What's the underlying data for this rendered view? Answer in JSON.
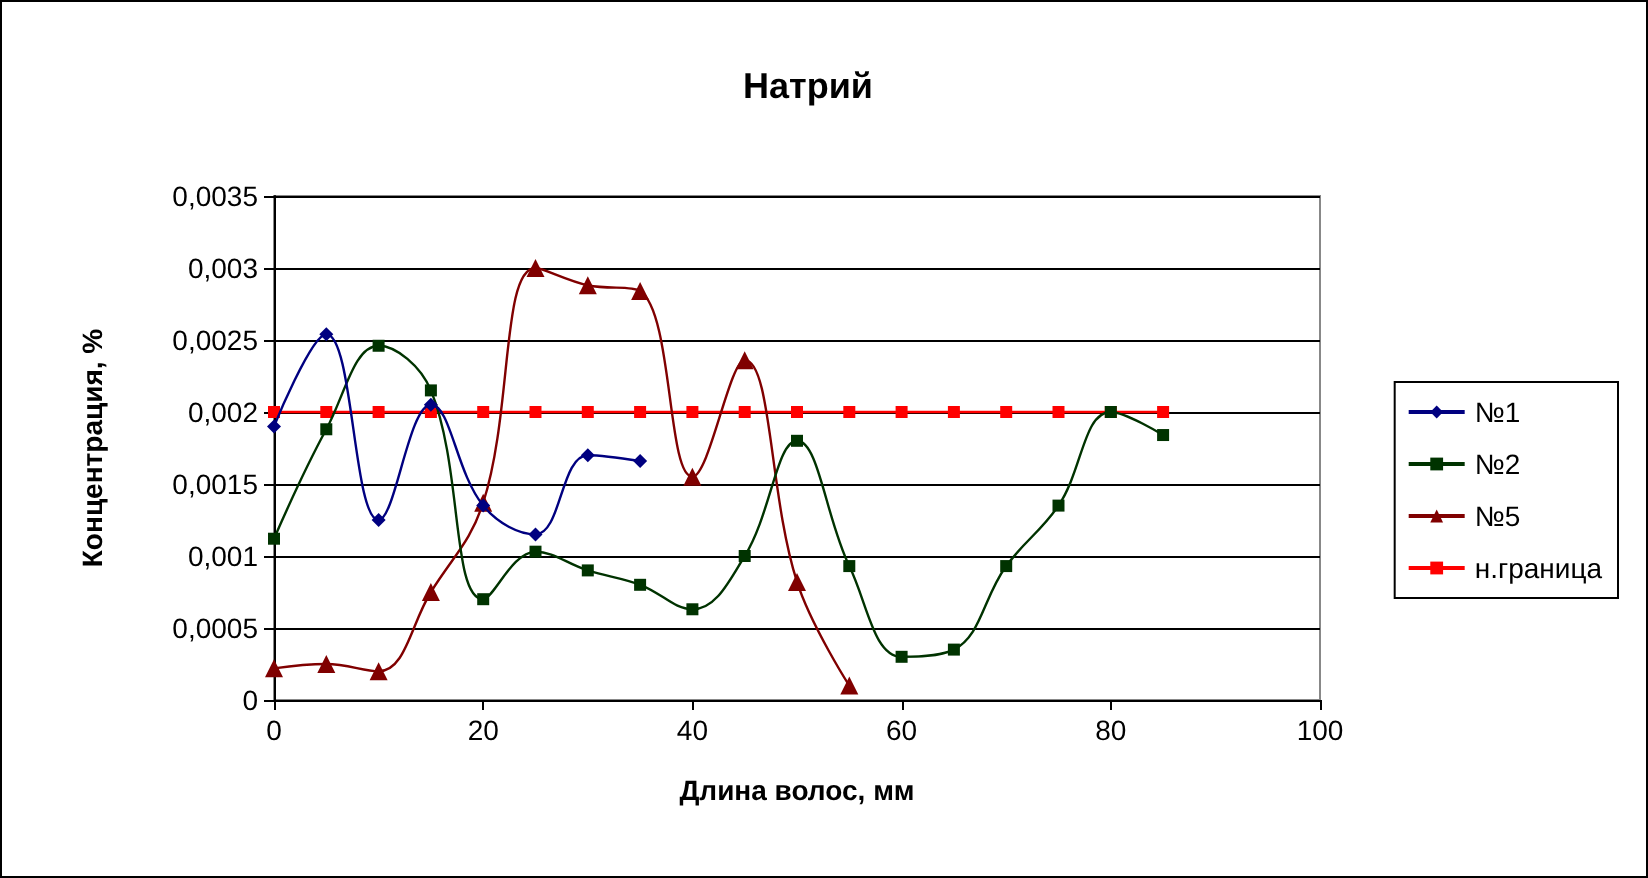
{
  "chart_data": {
    "type": "line",
    "title": "Натрий",
    "xlabel": "Длина волос, мм",
    "ylabel": "Концентрация, %",
    "xlim": [
      0,
      100
    ],
    "xticks": [
      0,
      20,
      40,
      60,
      80,
      100
    ],
    "ylim": [
      0,
      0.0035
    ],
    "yticks": [
      {
        "value": 0,
        "label": "0"
      },
      {
        "value": 0.0005,
        "label": "0,0005"
      },
      {
        "value": 0.001,
        "label": "0,001"
      },
      {
        "value": 0.0015,
        "label": "0,0015"
      },
      {
        "value": 0.002,
        "label": "0,002"
      },
      {
        "value": 0.0025,
        "label": "0,0025"
      },
      {
        "value": 0.003,
        "label": "0,003"
      },
      {
        "value": 0.0035,
        "label": "0,0035"
      }
    ],
    "grid": "y",
    "legend": "right",
    "series": [
      {
        "name": "№1",
        "color": "#000080",
        "marker": "diamond",
        "x": [
          0,
          5,
          10,
          15,
          20,
          25,
          30,
          35
        ],
        "values": [
          0.0019,
          0.00254,
          0.00125,
          0.00205,
          0.00135,
          0.00115,
          0.0017,
          0.00166
        ]
      },
      {
        "name": "№2",
        "color": "#003300",
        "marker": "square",
        "x": [
          0,
          5,
          10,
          15,
          20,
          25,
          30,
          35,
          40,
          45,
          50,
          55,
          60,
          65,
          70,
          75,
          80,
          85
        ],
        "values": [
          0.00112,
          0.00188,
          0.00246,
          0.00215,
          0.0007,
          0.00103,
          0.0009,
          0.0008,
          0.00063,
          0.001,
          0.0018,
          0.00093,
          0.0003,
          0.00035,
          0.00093,
          0.00135,
          0.002,
          0.00184
        ]
      },
      {
        "name": "№5",
        "color": "#800000",
        "marker": "triangle",
        "x": [
          0,
          5,
          10,
          15,
          20,
          25,
          30,
          35,
          40,
          45,
          50,
          55
        ],
        "values": [
          0.00022,
          0.00025,
          0.0002,
          0.00075,
          0.00137,
          0.003,
          0.00288,
          0.00284,
          0.00155,
          0.00236,
          0.00082,
          0.0001
        ]
      },
      {
        "name": "н.граница",
        "color": "#ff0000",
        "marker": "square",
        "x": [
          0,
          5,
          10,
          15,
          20,
          25,
          30,
          35,
          40,
          45,
          50,
          55,
          60,
          65,
          70,
          75,
          80,
          85
        ],
        "values": [
          0.002,
          0.002,
          0.002,
          0.002,
          0.002,
          0.002,
          0.002,
          0.002,
          0.002,
          0.002,
          0.002,
          0.002,
          0.002,
          0.002,
          0.002,
          0.002,
          0.002,
          0.002
        ]
      }
    ]
  }
}
